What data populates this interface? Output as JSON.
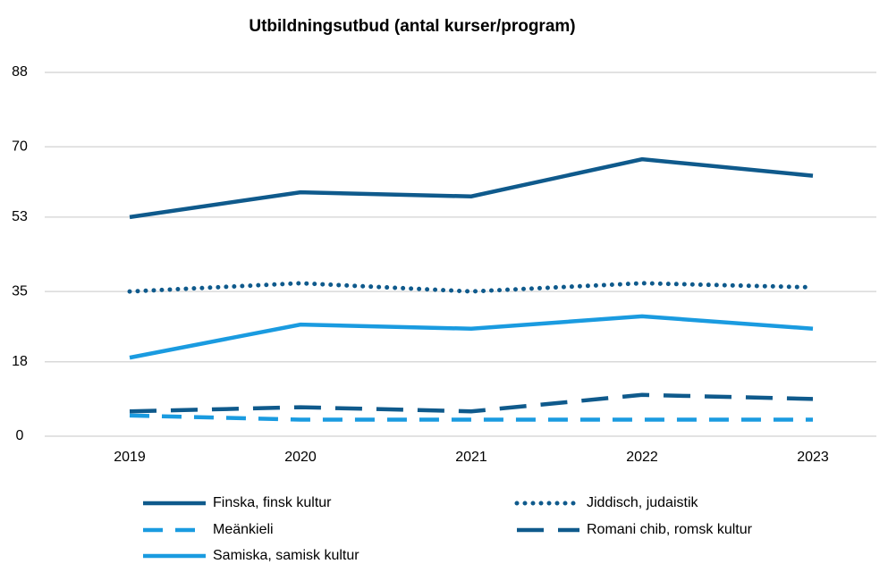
{
  "chart_data": {
    "type": "line",
    "title": "Utbildningsutbud (antal kurser/program)",
    "categories": [
      "2019",
      "2020",
      "2021",
      "2022",
      "2023"
    ],
    "ylim": [
      0,
      88
    ],
    "yticks": [
      0,
      18,
      35,
      53,
      70,
      88
    ],
    "grid": true,
    "series": [
      {
        "name": "Finska, finsk kultur",
        "color": "#0f5a8c",
        "style": "solid",
        "values": [
          53,
          59,
          58,
          67,
          63
        ]
      },
      {
        "name": "Jiddisch, judaistik",
        "color": "#0f5a8c",
        "style": "dotted",
        "values": [
          35,
          37,
          35,
          37,
          36
        ]
      },
      {
        "name": "Meänkieli",
        "color": "#1a9be0",
        "style": "dashed",
        "values": [
          5,
          4,
          4,
          4,
          4
        ]
      },
      {
        "name": "Romani chib, romsk kultur",
        "color": "#0f5a8c",
        "style": "longdash",
        "values": [
          6,
          7,
          6,
          10,
          9
        ]
      },
      {
        "name": "Samiska, samisk kultur",
        "color": "#1a9be0",
        "style": "solid",
        "values": [
          19,
          27,
          26,
          29,
          26
        ]
      }
    ]
  }
}
